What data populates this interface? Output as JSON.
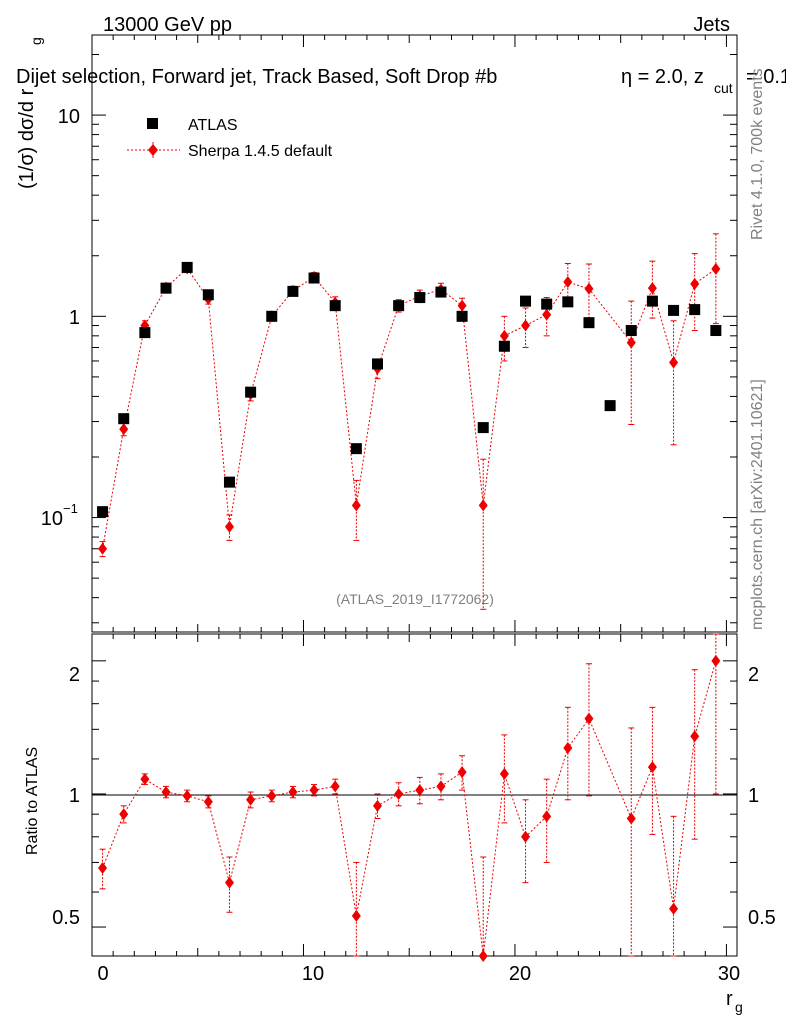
{
  "header": {
    "energy_label": "13000 GeV pp",
    "category_label": "Jets",
    "title": "Dijet selection, Forward jet, Track Based, Soft Drop #b",
    "title_eta": "η = 2.0, z",
    "title_cut": "cut",
    "title_tail": "= 0.1",
    "side_info_top": "Rivet 4.1.0,  700k events",
    "side_info_bottom": "mcplots.cern.ch [arXiv:2401.10621]",
    "analysis_id": "(ATLAS_2019_I1772062)"
  },
  "axes": {
    "ylabel_main": "(1/σ) dσ/d r",
    "ylabel_main_sub": "g",
    "ylabel_ratio": "Ratio to ATLAS",
    "xlabel": "r",
    "xlabel_sub": "g",
    "main_ticks": {
      "t10": "10",
      "t1": "1",
      "t01": "10",
      "t01_exp": "−1"
    },
    "ratio_ticks": [
      "2",
      "1",
      "0.5"
    ],
    "x_ticks": [
      "0",
      "10",
      "20",
      "30"
    ]
  },
  "colors": {
    "data": "#000000",
    "mc": "#ee0000",
    "muted": "#808080"
  },
  "chart_data": {
    "type": "scatter",
    "xlim": [
      0,
      30.5
    ],
    "ylim_main": [
      0.027,
      25
    ],
    "ylim_ratio": [
      0.43,
      2.3
    ],
    "y_scale": "log",
    "legend": {
      "position": "top-left",
      "entries": [
        "ATLAS",
        "Sherpa 1.4.5 default"
      ]
    },
    "x": [
      0.5,
      1.5,
      2.5,
      3.5,
      4.5,
      5.5,
      6.5,
      7.5,
      8.5,
      9.5,
      10.5,
      11.5,
      12.5,
      13.5,
      14.5,
      15.5,
      16.5,
      17.5,
      18.5,
      19.5,
      20.5,
      21.5,
      22.5,
      23.5,
      24.5,
      25.5,
      26.5,
      27.5,
      28.5,
      29.5
    ],
    "series": [
      {
        "name": "ATLAS",
        "values": [
          0.107,
          0.31,
          0.83,
          1.38,
          1.75,
          1.28,
          0.15,
          0.42,
          1.0,
          1.33,
          1.55,
          1.13,
          0.22,
          0.58,
          1.13,
          1.24,
          1.32,
          1.0,
          0.28,
          0.71,
          1.19,
          1.15,
          1.18,
          0.93,
          0.36,
          0.85,
          1.19,
          1.07,
          1.08,
          0.85
        ]
      },
      {
        "name": "Sherpa 1.4.5 default",
        "values": [
          0.07,
          0.275,
          0.9,
          1.39,
          1.73,
          1.22,
          0.09,
          0.41,
          1.0,
          1.34,
          1.57,
          1.17,
          0.115,
          0.55,
          1.13,
          1.26,
          1.36,
          1.13,
          0.115,
          0.8,
          0.9,
          1.02,
          1.48,
          1.37,
          null,
          0.74,
          1.38,
          0.59,
          1.45,
          1.72
        ],
        "err_low": [
          0.006,
          0.02,
          0.05,
          0.07,
          0.08,
          0.07,
          0.013,
          0.03,
          0.05,
          0.07,
          0.08,
          0.08,
          0.038,
          0.06,
          0.08,
          0.09,
          0.1,
          0.1,
          0.08,
          0.2,
          0.2,
          0.22,
          0.35,
          0.45,
          null,
          0.45,
          0.4,
          0.36,
          0.6,
          0.8
        ],
        "err_high": [
          0.006,
          0.02,
          0.05,
          0.07,
          0.08,
          0.07,
          0.013,
          0.03,
          0.05,
          0.07,
          0.08,
          0.08,
          0.038,
          0.06,
          0.08,
          0.09,
          0.1,
          0.1,
          0.08,
          0.2,
          0.2,
          0.22,
          0.35,
          0.45,
          null,
          0.45,
          0.5,
          0.36,
          0.6,
          0.85
        ]
      }
    ],
    "ratio": {
      "name": "Sherpa 1.4.5 default / ATLAS",
      "values": [
        0.68,
        0.9,
        1.08,
        1.01,
        0.99,
        0.96,
        0.63,
        0.97,
        0.99,
        1.01,
        1.02,
        1.04,
        0.53,
        0.94,
        1.0,
        1.02,
        1.04,
        1.12,
        0.42,
        1.11,
        0.8,
        0.89,
        1.27,
        1.48,
        null,
        0.88,
        1.15,
        0.55,
        1.35,
        2.0
      ],
      "err_low": [
        0.07,
        0.04,
        0.03,
        0.03,
        0.03,
        0.03,
        0.09,
        0.04,
        0.03,
        0.03,
        0.03,
        0.04,
        0.17,
        0.06,
        0.06,
        0.07,
        0.07,
        0.1,
        0.3,
        0.25,
        0.17,
        0.19,
        0.3,
        0.49,
        null,
        0.53,
        0.34,
        0.34,
        0.56,
        1.0
      ],
      "err_high": [
        0.07,
        0.04,
        0.03,
        0.03,
        0.03,
        0.03,
        0.09,
        0.04,
        0.03,
        0.03,
        0.03,
        0.04,
        0.17,
        0.06,
        0.06,
        0.07,
        0.07,
        0.1,
        0.3,
        0.25,
        0.17,
        0.19,
        0.3,
        0.49,
        null,
        0.53,
        0.42,
        0.34,
        0.56,
        1.0
      ]
    }
  }
}
